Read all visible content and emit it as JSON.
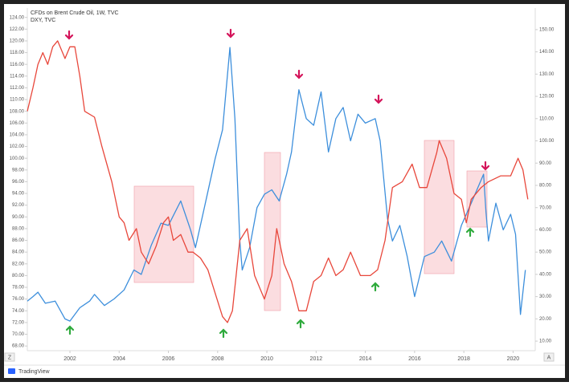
{
  "chart_data": {
    "type": "line",
    "brand": "TradingView",
    "corner_left": "Z",
    "corner_right": "A",
    "grid": false,
    "xlim": [
      2000.27,
      2020.9
    ],
    "xticks": [
      2002,
      2004,
      2006,
      2008,
      2010,
      2012,
      2014,
      2016,
      2018,
      2020
    ],
    "ylim": [
      67.2,
      125.6
    ],
    "yticks": [
      {
        "value": 68,
        "label": "68.00"
      },
      {
        "value": 70,
        "label": "70.00"
      },
      {
        "value": 72,
        "label": "72.00"
      },
      {
        "value": 74,
        "label": "74.00"
      },
      {
        "value": 76,
        "label": "76.00"
      },
      {
        "value": 78,
        "label": "78.00"
      },
      {
        "value": 80,
        "label": "80.00"
      },
      {
        "value": 82,
        "label": "82.00"
      },
      {
        "value": 84,
        "label": "84.00"
      },
      {
        "value": 86,
        "label": "86.00"
      },
      {
        "value": 88,
        "label": "88.00"
      },
      {
        "value": 90,
        "label": "90.00"
      },
      {
        "value": 92,
        "label": "92.00"
      },
      {
        "value": 94,
        "label": "94.00"
      },
      {
        "value": 96,
        "label": "96.00"
      },
      {
        "value": 98,
        "label": "98.00"
      },
      {
        "value": 100,
        "label": "100.00"
      },
      {
        "value": 102,
        "label": "102.00"
      },
      {
        "value": 104,
        "label": "104.00"
      },
      {
        "value": 106,
        "label": "106.00"
      },
      {
        "value": 108,
        "label": "108.00"
      },
      {
        "value": 110,
        "label": "110.00"
      },
      {
        "value": 112,
        "label": "112.00"
      },
      {
        "value": 114,
        "label": "114.00"
      },
      {
        "value": 116,
        "label": "116.00"
      },
      {
        "value": 118,
        "label": "118.00"
      },
      {
        "value": 120,
        "label": "120.00"
      },
      {
        "value": 122,
        "label": "122.00"
      },
      {
        "value": 124,
        "label": "124.00"
      }
    ],
    "y2lim": [
      5.7,
      159.7
    ],
    "y2ticks": [
      {
        "value": 10,
        "label": "10.00"
      },
      {
        "value": 20,
        "label": "20.00"
      },
      {
        "value": 30,
        "label": "30.00"
      },
      {
        "value": 40,
        "label": "40.00"
      },
      {
        "value": 50,
        "label": "50.00"
      },
      {
        "value": 60,
        "label": "60.00"
      },
      {
        "value": 70,
        "label": "70.00"
      },
      {
        "value": 80,
        "label": "80.00"
      },
      {
        "value": 90,
        "label": "90.00"
      },
      {
        "value": 100,
        "label": "100.00"
      },
      {
        "value": 110,
        "label": "110.00"
      },
      {
        "value": 120,
        "label": "120.00"
      },
      {
        "value": 130,
        "label": "130.00"
      },
      {
        "value": 140,
        "label": "140.00"
      },
      {
        "value": 150,
        "label": "150.00"
      }
    ],
    "series": [
      {
        "name": "CFDs on Brent Crude Oil, 1W, TVC",
        "color": "#3d8fdc",
        "axis": "y2",
        "x": [
          2000.27,
          2000.5,
          2000.7,
          2001.0,
          2001.4,
          2001.8,
          2002.0,
          2002.4,
          2002.8,
          2003.0,
          2003.4,
          2003.8,
          2004.2,
          2004.6,
          2004.9,
          2005.3,
          2005.7,
          2006.0,
          2006.5,
          2006.9,
          2007.1,
          2007.5,
          2007.9,
          2008.2,
          2008.5,
          2008.7,
          2008.9,
          2009.0,
          2009.3,
          2009.6,
          2009.9,
          2010.2,
          2010.5,
          2010.8,
          2011.0,
          2011.3,
          2011.6,
          2011.9,
          2012.2,
          2012.5,
          2012.8,
          2013.1,
          2013.4,
          2013.7,
          2014.0,
          2014.4,
          2014.6,
          2014.9,
          2015.1,
          2015.4,
          2015.7,
          2016.0,
          2016.4,
          2016.8,
          2017.1,
          2017.5,
          2017.9,
          2018.3,
          2018.8,
          2018.9,
          2019.0,
          2019.3,
          2019.6,
          2019.9,
          2020.1,
          2020.3,
          2020.5
        ],
        "values": [
          28,
          30,
          32,
          27,
          28,
          20,
          19,
          25,
          28,
          31,
          26,
          29,
          33,
          42,
          40,
          53,
          63,
          62,
          73,
          60,
          52,
          72,
          92,
          105,
          142,
          110,
          55,
          42,
          52,
          70,
          76,
          78,
          73,
          85,
          95,
          123,
          110,
          107,
          122,
          95,
          110,
          115,
          100,
          112,
          108,
          110,
          100,
          65,
          55,
          62,
          48,
          30,
          48,
          50,
          55,
          46,
          62,
          72,
          85,
          68,
          55,
          72,
          60,
          67,
          58,
          22,
          42
        ]
      },
      {
        "name": "DXY, TVC",
        "color": "#e8473b",
        "axis": "y",
        "x": [
          2000.27,
          2000.5,
          2000.7,
          2000.9,
          2001.1,
          2001.3,
          2001.5,
          2001.8,
          2002.0,
          2002.2,
          2002.4,
          2002.6,
          2003.0,
          2003.3,
          2003.7,
          2004.0,
          2004.2,
          2004.4,
          2004.7,
          2004.9,
          2005.2,
          2005.5,
          2005.8,
          2006.0,
          2006.2,
          2006.5,
          2006.8,
          2007.0,
          2007.3,
          2007.6,
          2007.9,
          2008.2,
          2008.4,
          2008.6,
          2008.9,
          2009.2,
          2009.5,
          2009.9,
          2010.2,
          2010.4,
          2010.7,
          2011.0,
          2011.3,
          2011.6,
          2011.9,
          2012.2,
          2012.5,
          2012.8,
          2013.1,
          2013.4,
          2013.8,
          2014.2,
          2014.5,
          2014.8,
          2015.1,
          2015.5,
          2015.9,
          2016.2,
          2016.5,
          2016.9,
          2017.0,
          2017.3,
          2017.6,
          2017.9,
          2018.1,
          2018.3,
          2018.7,
          2019.0,
          2019.5,
          2019.9,
          2020.2,
          2020.4,
          2020.6
        ],
        "values": [
          108,
          112,
          116,
          118,
          116,
          119,
          120,
          117,
          119,
          119,
          114,
          108,
          107,
          102,
          96,
          90,
          89,
          86,
          88,
          84,
          82,
          85,
          89,
          90,
          86,
          87,
          84,
          84,
          83,
          81,
          77,
          73,
          72,
          74,
          86,
          88,
          80,
          76,
          80,
          88,
          82,
          79,
          74,
          74,
          79,
          80,
          83,
          80,
          81,
          84,
          80,
          80,
          81,
          86,
          95,
          96,
          99,
          95,
          95,
          101,
          103,
          100,
          94,
          93,
          89,
          93,
          95,
          96,
          97,
          97,
          100,
          98,
          93
        ]
      }
    ]
  }
}
